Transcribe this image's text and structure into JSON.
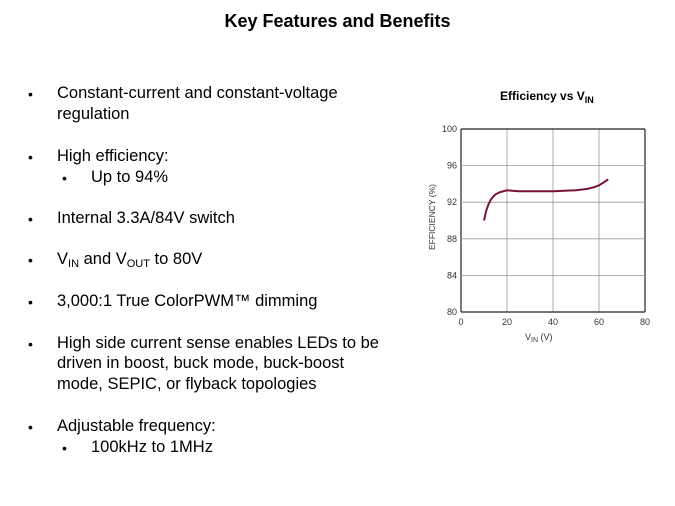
{
  "title": "Key Features and Benefits",
  "bullets": {
    "b1a": "Constant-current and constant-voltage",
    "b1b": "regulation",
    "b2": "High efficiency:",
    "b2s": "Up to 94%",
    "b3": "Internal 3.3A/84V switch",
    "b4": {
      "v": "V",
      "in": "IN",
      "and": " and V",
      "out": "OUT",
      "rest": " to 80V"
    },
    "b5": "3,000:1 True ColorPWM™  dimming",
    "b6a": "High side current sense enables LEDs to be",
    "b6b": "driven in boost, buck mode, buck-boost",
    "b6c": "mode, SEPIC, or flyback topologies",
    "b7": "Adjustable frequency:",
    "b7s": "100kHz to 1MHz",
    "bullet": "•"
  },
  "chart_data": {
    "type": "line",
    "title": "Efficiency vs VIN",
    "title_main": "Efficiency vs V",
    "title_sub": "IN",
    "xlabel": "VIN (V)",
    "xlabel_main": "V",
    "xlabel_sub": "IN",
    "xlabel_unit": " (V)",
    "ylabel": "EFFICIENCY (%)",
    "xlim": [
      0,
      80
    ],
    "ylim": [
      80,
      100
    ],
    "xticks": [
      0,
      20,
      40,
      60,
      80
    ],
    "yticks": [
      80,
      84,
      88,
      92,
      96,
      100
    ],
    "grid": true,
    "color": "#7a1530",
    "x": [
      10,
      11,
      12,
      13,
      14,
      15,
      17,
      20,
      25,
      30,
      40,
      50,
      55,
      58,
      60,
      62,
      64
    ],
    "y": [
      90.0,
      91.1,
      91.8,
      92.3,
      92.6,
      92.85,
      93.1,
      93.3,
      93.2,
      93.2,
      93.2,
      93.3,
      93.45,
      93.65,
      93.85,
      94.15,
      94.5
    ]
  }
}
